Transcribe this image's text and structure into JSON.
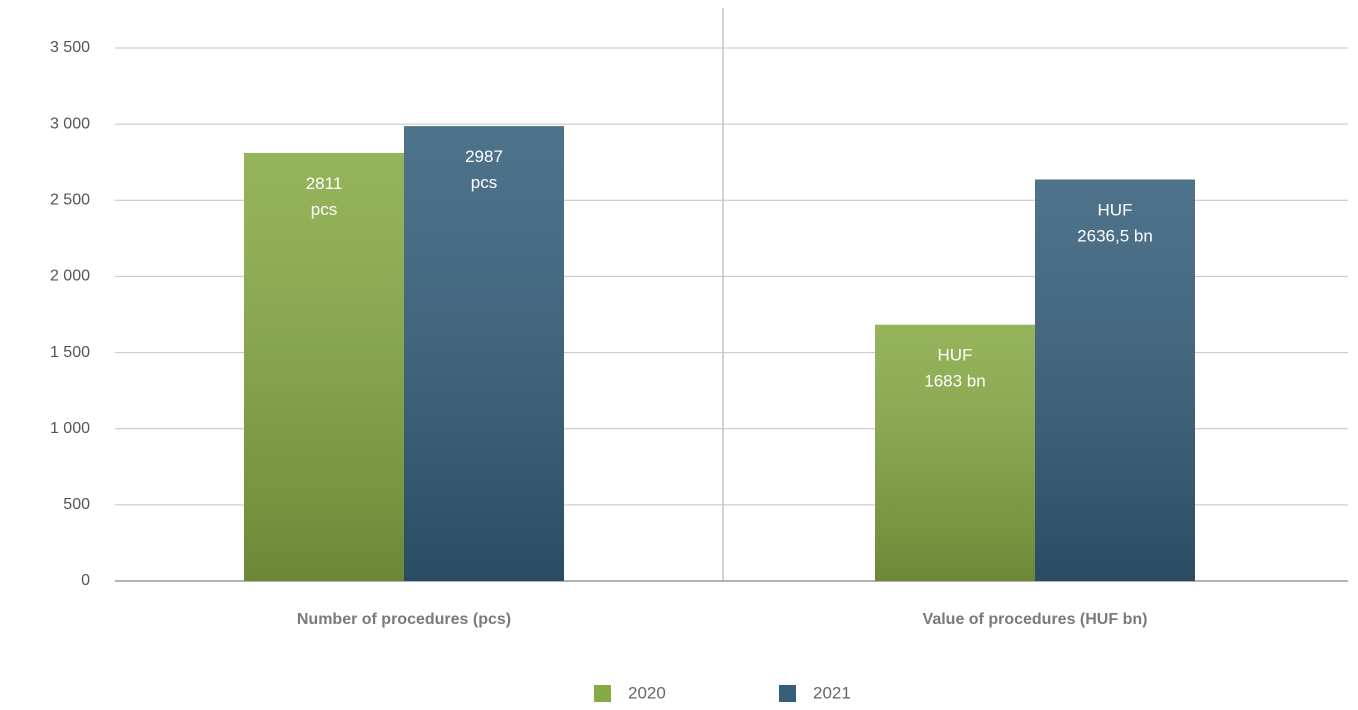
{
  "chart_data": {
    "type": "bar",
    "categories": [
      "Number of procedures (pcs)",
      "Value of procedures (HUF bn)"
    ],
    "series": [
      {
        "name": "2020",
        "color": "#86aa44",
        "values": [
          2811,
          1683
        ],
        "value_labels": [
          "2811\npcs",
          "HUF\n1683 bn"
        ]
      },
      {
        "name": "2021",
        "color": "#355f7a",
        "values": [
          2987,
          2636.5
        ],
        "value_labels": [
          "2987\npcs",
          "HUF\n2636,5 bn"
        ]
      }
    ],
    "ylim": [
      0,
      3500
    ],
    "yticks": [
      0,
      500,
      {
        "value": 1000,
        "label": "1 000"
      },
      {
        "value": 1500,
        "label": "1 500"
      },
      {
        "value": 2000,
        "label": "2 000"
      },
      {
        "value": 2500,
        "label": "2 500"
      },
      {
        "value": 3000,
        "label": "3 000"
      },
      {
        "value": 3500,
        "label": "3 500"
      }
    ],
    "grid": true,
    "legend": "bottom"
  }
}
